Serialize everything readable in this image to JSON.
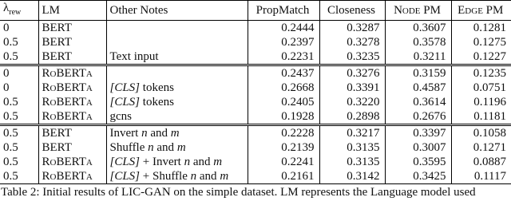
{
  "table": {
    "header": [
      {
        "symbol": "λ",
        "subscript": "rew"
      },
      "LM",
      "Other Notes",
      "PropMatch",
      "Closeness",
      "Node PM",
      "Edge PM"
    ],
    "groups": [
      [
        [
          "0",
          "BERT",
          "",
          "0.2444",
          "0.3287",
          "0.3607",
          "0.1281"
        ],
        [
          "0.5",
          "BERT",
          "",
          "0.2397",
          "0.3278",
          "0.3578",
          "0.1275"
        ],
        [
          "0.5",
          "BERT",
          "Text input",
          "0.2231",
          "0.3235",
          "0.3211",
          "0.1227"
        ]
      ],
      [
        [
          "0",
          "RoBERTa",
          "",
          "0.2437",
          "0.3276",
          "0.3159",
          "0.1235"
        ],
        [
          "0",
          "RoBERTa",
          "[CLS] tokens",
          "0.2668",
          "0.3391",
          "0.4587",
          "0.0751"
        ],
        [
          "0.5",
          "RoBERTa",
          "[CLS] tokens",
          "0.2405",
          "0.3220",
          "0.3614",
          "0.1196"
        ],
        [
          "0.5",
          "RoBERTa",
          "gcns",
          "0.1928",
          "0.2898",
          "0.2676",
          "0.1181"
        ]
      ],
      [
        [
          "0.5",
          "BERT",
          "Invert n and m",
          "0.2228",
          "0.3217",
          "0.3397",
          "0.1058"
        ],
        [
          "0.5",
          "BERT",
          "Shuffle n and m",
          "0.2139",
          "0.3135",
          "0.3007",
          "0.1271"
        ],
        [
          "0.5",
          "RoBERTa",
          "[CLS] + Invert n and m",
          "0.2241",
          "0.3135",
          "0.3595",
          "0.0887"
        ],
        [
          "0.5",
          "RoBERTa",
          "[CLS] + Shuffle n and m",
          "0.2161",
          "0.3142",
          "0.3425",
          "0.1117"
        ]
      ]
    ]
  },
  "caption": "Table 2: Initial results of LIC-GAN on the simple dataset. LM represents the Language model used"
}
